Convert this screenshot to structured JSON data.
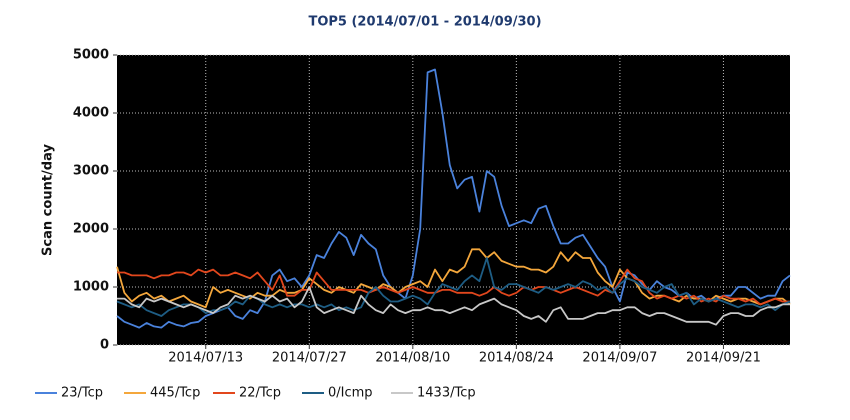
{
  "chart_data": {
    "type": "line",
    "title": "TOP5 (2014/07/01 - 2014/09/30)",
    "y_label": "Scan count/day",
    "x": [
      "2014/07/01",
      "2014/07/02",
      "2014/07/03",
      "2014/07/04",
      "2014/07/05",
      "2014/07/06",
      "2014/07/07",
      "2014/07/08",
      "2014/07/09",
      "2014/07/10",
      "2014/07/11",
      "2014/07/12",
      "2014/07/13",
      "2014/07/14",
      "2014/07/15",
      "2014/07/16",
      "2014/07/17",
      "2014/07/18",
      "2014/07/19",
      "2014/07/20",
      "2014/07/21",
      "2014/07/22",
      "2014/07/23",
      "2014/07/24",
      "2014/07/25",
      "2014/07/26",
      "2014/07/27",
      "2014/07/28",
      "2014/07/29",
      "2014/07/30",
      "2014/07/31",
      "2014/08/01",
      "2014/08/02",
      "2014/08/03",
      "2014/08/04",
      "2014/08/05",
      "2014/08/06",
      "2014/08/07",
      "2014/08/08",
      "2014/08/09",
      "2014/08/10",
      "2014/08/11",
      "2014/08/12",
      "2014/08/13",
      "2014/08/14",
      "2014/08/15",
      "2014/08/16",
      "2014/08/17",
      "2014/08/18",
      "2014/08/19",
      "2014/08/20",
      "2014/08/21",
      "2014/08/22",
      "2014/08/23",
      "2014/08/24",
      "2014/08/25",
      "2014/08/26",
      "2014/08/27",
      "2014/08/28",
      "2014/08/29",
      "2014/08/30",
      "2014/08/31",
      "2014/09/01",
      "2014/09/02",
      "2014/09/03",
      "2014/09/04",
      "2014/09/05",
      "2014/09/06",
      "2014/09/07",
      "2014/09/08",
      "2014/09/09",
      "2014/09/10",
      "2014/09/11",
      "2014/09/12",
      "2014/09/13",
      "2014/09/14",
      "2014/09/15",
      "2014/09/16",
      "2014/09/17",
      "2014/09/18",
      "2014/09/19",
      "2014/09/20",
      "2014/09/21",
      "2014/09/22",
      "2014/09/23",
      "2014/09/24",
      "2014/09/25",
      "2014/09/26",
      "2014/09/27",
      "2014/09/28",
      "2014/09/29",
      "2014/09/30"
    ],
    "xlim": [
      "2014/07/01",
      "2014/09/30"
    ],
    "xticks": [
      "2014/07/13",
      "2014/07/27",
      "2014/08/10",
      "2014/08/24",
      "2014/09/07",
      "2014/09/21"
    ],
    "ylim": [
      0,
      5000
    ],
    "yticks": [
      0,
      1000,
      2000,
      3000,
      4000,
      5000
    ],
    "grid": true,
    "background": "#000000",
    "legend": "bottom",
    "series": [
      {
        "name": "23/Tcp",
        "color": "#4a82dc",
        "values": [
          500,
          400,
          350,
          300,
          380,
          320,
          300,
          400,
          350,
          320,
          380,
          400,
          500,
          550,
          600,
          650,
          500,
          450,
          600,
          550,
          750,
          1200,
          1300,
          1100,
          1150,
          1000,
          1200,
          1550,
          1500,
          1750,
          1950,
          1850,
          1550,
          1900,
          1750,
          1650,
          1200,
          1000,
          900,
          800,
          1200,
          2000,
          4700,
          4750,
          4000,
          3100,
          2700,
          2850,
          2900,
          2300,
          3000,
          2900,
          2400,
          2050,
          2100,
          2150,
          2100,
          2350,
          2400,
          2050,
          1750,
          1750,
          1850,
          1900,
          1700,
          1500,
          1350,
          1000,
          750,
          1250,
          1200,
          1050,
          950,
          1100,
          1000,
          950,
          850,
          900,
          800,
          850,
          750,
          800,
          850,
          850,
          1000,
          1000,
          900,
          800,
          850,
          850,
          1100,
          1200
        ]
      },
      {
        "name": "445/Tcp",
        "color": "#f4a73c",
        "values": [
          1350,
          900,
          750,
          850,
          900,
          800,
          850,
          750,
          800,
          850,
          750,
          700,
          650,
          1000,
          900,
          950,
          900,
          850,
          800,
          900,
          850,
          850,
          950,
          900,
          900,
          950,
          1150,
          1050,
          950,
          900,
          1000,
          950,
          900,
          1050,
          1000,
          950,
          1050,
          1000,
          900,
          1000,
          1050,
          1100,
          1000,
          1300,
          1100,
          1300,
          1250,
          1350,
          1650,
          1650,
          1500,
          1600,
          1450,
          1400,
          1350,
          1350,
          1300,
          1300,
          1250,
          1350,
          1600,
          1450,
          1600,
          1500,
          1500,
          1250,
          1100,
          1000,
          1300,
          1150,
          1100,
          900,
          800,
          850,
          850,
          800,
          750,
          850,
          800,
          800,
          750,
          850,
          800,
          750,
          800,
          800,
          750,
          700,
          750,
          800,
          800,
          700
        ]
      },
      {
        "name": "22/Tcp",
        "color": "#e2471d",
        "values": [
          1250,
          1250,
          1200,
          1200,
          1200,
          1150,
          1200,
          1200,
          1250,
          1250,
          1200,
          1300,
          1250,
          1300,
          1200,
          1200,
          1250,
          1200,
          1150,
          1250,
          1100,
          950,
          1200,
          850,
          850,
          950,
          950,
          1250,
          1100,
          950,
          950,
          950,
          950,
          950,
          900,
          950,
          1000,
          950,
          900,
          950,
          1000,
          950,
          900,
          900,
          950,
          950,
          900,
          900,
          900,
          850,
          900,
          1000,
          900,
          850,
          900,
          1000,
          950,
          1000,
          1000,
          950,
          900,
          950,
          1000,
          950,
          900,
          850,
          950,
          900,
          1100,
          1300,
          1150,
          1100,
          900,
          800,
          850,
          800,
          850,
          800,
          850,
          750,
          800,
          750,
          850,
          800,
          800,
          750,
          800,
          700,
          750,
          800,
          750,
          750
        ]
      },
      {
        "name": "0/Icmp",
        "color": "#1e5d84",
        "values": [
          750,
          700,
          650,
          700,
          600,
          550,
          500,
          600,
          650,
          700,
          700,
          650,
          550,
          600,
          600,
          650,
          750,
          700,
          850,
          800,
          700,
          650,
          700,
          650,
          700,
          700,
          650,
          700,
          650,
          700,
          600,
          650,
          600,
          650,
          900,
          1000,
          850,
          750,
          750,
          800,
          850,
          800,
          700,
          900,
          1050,
          1000,
          950,
          1100,
          1200,
          1100,
          1500,
          1000,
          950,
          1050,
          1050,
          1000,
          950,
          900,
          1000,
          950,
          1000,
          1050,
          1000,
          1100,
          1050,
          950,
          1000,
          900,
          1050,
          1150,
          1100,
          1000,
          950,
          900,
          1000,
          1050,
          850,
          900,
          700,
          800,
          750,
          800,
          750,
          700,
          650,
          700,
          700,
          650,
          700,
          600,
          700,
          750
        ]
      },
      {
        "name": "1433/Tcp",
        "color": "#c8c8c8",
        "values": [
          800,
          800,
          700,
          650,
          800,
          750,
          800,
          750,
          700,
          650,
          700,
          650,
          600,
          550,
          650,
          700,
          850,
          800,
          850,
          800,
          750,
          850,
          750,
          800,
          650,
          750,
          1000,
          650,
          550,
          600,
          650,
          600,
          550,
          850,
          700,
          600,
          550,
          700,
          600,
          550,
          600,
          600,
          650,
          600,
          600,
          550,
          600,
          650,
          600,
          700,
          750,
          800,
          700,
          650,
          600,
          500,
          450,
          500,
          400,
          600,
          650,
          450,
          450,
          450,
          500,
          550,
          550,
          600,
          600,
          650,
          650,
          550,
          500,
          550,
          550,
          500,
          450,
          400,
          400,
          400,
          400,
          350,
          500,
          550,
          550,
          500,
          500,
          600,
          650,
          650,
          700,
          700
        ]
      }
    ]
  }
}
